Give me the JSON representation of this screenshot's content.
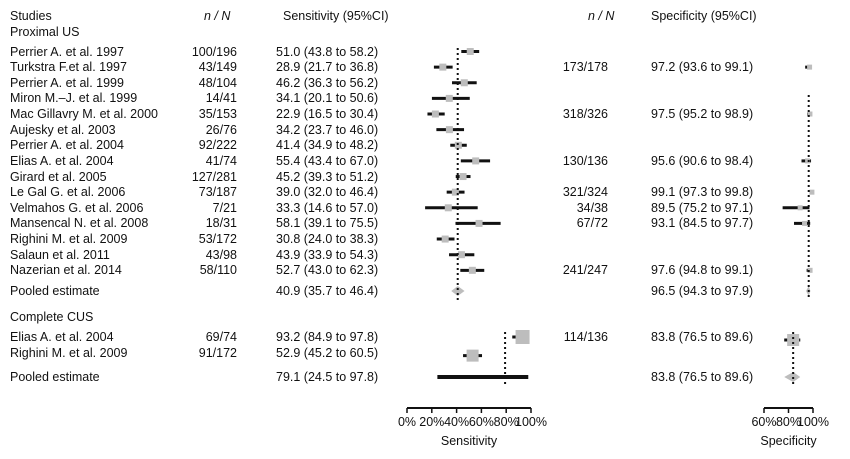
{
  "chart_data": {
    "type": "forest",
    "headers": {
      "studies": "Studies",
      "n_over_n": "n / N",
      "sensitivity_ci": "Sensitivity (95%CI)",
      "specificity_ci": "Specificity (95%CI)"
    },
    "groups": [
      {
        "label": "Proximal US",
        "studies": [
          {
            "study": "Perrier A. et al. 1997",
            "sens_n": "100/196",
            "sens_text": "51.0 (43.8 to 58.2)",
            "sens": 51.0,
            "sens_lo": 43.8,
            "sens_hi": 58.2,
            "spec_n": "",
            "spec_text": "",
            "spec": null,
            "spec_lo": null,
            "spec_hi": null
          },
          {
            "study": "Turkstra F.et al. 1997",
            "sens_n": "43/149",
            "sens_text": "28.9 (21.7 to 36.8)",
            "sens": 28.9,
            "sens_lo": 21.7,
            "sens_hi": 36.8,
            "spec_n": "173/178",
            "spec_text": "97.2 (93.6 to 99.1)",
            "spec": 97.2,
            "spec_lo": 93.6,
            "spec_hi": 99.1
          },
          {
            "study": "Perrier A. et al. 1999",
            "sens_n": "48/104",
            "sens_text": "46.2 (36.3 to 56.2)",
            "sens": 46.2,
            "sens_lo": 36.3,
            "sens_hi": 56.2,
            "spec_n": "",
            "spec_text": "",
            "spec": null,
            "spec_lo": null,
            "spec_hi": null
          },
          {
            "study": "Miron M.–J. et al. 1999",
            "sens_n": "14/41",
            "sens_text": "34.1 (20.1 to 50.6)",
            "sens": 34.1,
            "sens_lo": 20.1,
            "sens_hi": 50.6,
            "spec_n": "",
            "spec_text": "",
            "spec": null,
            "spec_lo": null,
            "spec_hi": null
          },
          {
            "study": "Mac Gillavry M. et al. 2000",
            "sens_n": "35/153",
            "sens_text": "22.9 (16.5 to 30.4)",
            "sens": 22.9,
            "sens_lo": 16.5,
            "sens_hi": 30.4,
            "spec_n": "318/326",
            "spec_text": "97.5 (95.2 to 98.9)",
            "spec": 97.5,
            "spec_lo": 95.2,
            "spec_hi": 98.9
          },
          {
            "study": "Aujesky et al. 2003",
            "sens_n": "26/76",
            "sens_text": "34.2 (23.7 to 46.0)",
            "sens": 34.2,
            "sens_lo": 23.7,
            "sens_hi": 46.0,
            "spec_n": "",
            "spec_text": "",
            "spec": null,
            "spec_lo": null,
            "spec_hi": null
          },
          {
            "study": "Perrier A. et al. 2004",
            "sens_n": "92/222",
            "sens_text": "41.4 (34.9 to 48.2)",
            "sens": 41.4,
            "sens_lo": 34.9,
            "sens_hi": 48.2,
            "spec_n": "",
            "spec_text": "",
            "spec": null,
            "spec_lo": null,
            "spec_hi": null
          },
          {
            "study": "Elias A. et al. 2004",
            "sens_n": "41/74",
            "sens_text": "55.4 (43.4 to 67.0)",
            "sens": 55.4,
            "sens_lo": 43.4,
            "sens_hi": 67.0,
            "spec_n": "130/136",
            "spec_text": "95.6 (90.6 to 98.4)",
            "spec": 95.6,
            "spec_lo": 90.6,
            "spec_hi": 98.4
          },
          {
            "study": "Girard et al. 2005",
            "sens_n": "127/281",
            "sens_text": "45.2 (39.3 to 51.2)",
            "sens": 45.2,
            "sens_lo": 39.3,
            "sens_hi": 51.2,
            "spec_n": "",
            "spec_text": "",
            "spec": null,
            "spec_lo": null,
            "spec_hi": null
          },
          {
            "study": "Le Gal G. et al. 2006",
            "sens_n": "73/187",
            "sens_text": "39.0 (32.0 to 46.4)",
            "sens": 39.0,
            "sens_lo": 32.0,
            "sens_hi": 46.4,
            "spec_n": "321/324",
            "spec_text": "99.1 (97.3 to 99.8)",
            "spec": 99.1,
            "spec_lo": 97.3,
            "spec_hi": 99.8
          },
          {
            "study": "Velmahos G. et al. 2006",
            "sens_n": "7/21",
            "sens_text": "33.3 (14.6 to 57.0)",
            "sens": 33.3,
            "sens_lo": 14.6,
            "sens_hi": 57.0,
            "spec_n": "34/38",
            "spec_text": "89.5 (75.2 to 97.1)",
            "spec": 89.5,
            "spec_lo": 75.2,
            "spec_hi": 97.1
          },
          {
            "study": "Mansencal N. et al. 2008",
            "sens_n": "18/31",
            "sens_text": "58.1 (39.1 to 75.5)",
            "sens": 58.1,
            "sens_lo": 39.1,
            "sens_hi": 75.5,
            "spec_n": "67/72",
            "spec_text": "93.1 (84.5 to 97.7)",
            "spec": 93.1,
            "spec_lo": 84.5,
            "spec_hi": 97.7
          },
          {
            "study": "Righini M. et al. 2009",
            "sens_n": "53/172",
            "sens_text": "30.8 (24.0 to 38.3)",
            "sens": 30.8,
            "sens_lo": 24.0,
            "sens_hi": 38.3,
            "spec_n": "",
            "spec_text": "",
            "spec": null,
            "spec_lo": null,
            "spec_hi": null
          },
          {
            "study": "Salaun et al. 2011",
            "sens_n": "43/98",
            "sens_text": "43.9 (33.9 to 54.3)",
            "sens": 43.9,
            "sens_lo": 33.9,
            "sens_hi": 54.3,
            "spec_n": "",
            "spec_text": "",
            "spec": null,
            "spec_lo": null,
            "spec_hi": null
          },
          {
            "study": "Nazerian et al. 2014",
            "sens_n": "58/110",
            "sens_text": "52.7 (43.0 to 62.3)",
            "sens": 52.7,
            "sens_lo": 43.0,
            "sens_hi": 62.3,
            "spec_n": "241/247",
            "spec_text": "97.6 (94.8 to 99.1)",
            "spec": 97.6,
            "spec_lo": 94.8,
            "spec_hi": 99.1
          }
        ],
        "pooled": {
          "label": "Pooled estimate",
          "sens_text": "40.9 (35.7 to 46.4)",
          "sens": 40.9,
          "sens_lo": 35.7,
          "sens_hi": 46.4,
          "spec_text": "96.5 (94.3 to 97.9)",
          "spec": 96.5,
          "spec_lo": 94.3,
          "spec_hi": 97.9
        }
      },
      {
        "label": "Complete CUS",
        "studies": [
          {
            "study": "Elias A. et al. 2004",
            "sens_n": "69/74",
            "sens_text": "93.2 (84.9 to 97.8)",
            "sens": 93.2,
            "sens_lo": 84.9,
            "sens_hi": 97.8,
            "spec_n": "114/136",
            "spec_text": "83.8 (76.5 to 89.6)",
            "spec": 83.8,
            "spec_lo": 76.5,
            "spec_hi": 89.6
          },
          {
            "study": "Righini M. et al. 2009",
            "sens_n": "91/172",
            "sens_text": "52.9 (45.2 to 60.5)",
            "sens": 52.9,
            "sens_lo": 45.2,
            "sens_hi": 60.5,
            "spec_n": "",
            "spec_text": "",
            "spec": null,
            "spec_lo": null,
            "spec_hi": null
          }
        ],
        "pooled": {
          "label": "Pooled estimate",
          "sens_text": "79.1 (24.5 to 97.8)",
          "sens": 79.1,
          "sens_lo": 24.5,
          "sens_hi": 97.8,
          "spec_text": "83.8 (76.5 to 89.6)",
          "spec": 83.8,
          "spec_lo": 76.5,
          "spec_hi": 89.6
        }
      }
    ],
    "sensitivity_axis": {
      "label": "Sensitivity",
      "range": [
        0,
        100
      ],
      "ticks": [
        0,
        20,
        40,
        60,
        80,
        100
      ],
      "tick_labels": [
        "0%",
        "20%",
        "40%",
        "60%",
        "80%",
        "100%"
      ]
    },
    "specificity_axis": {
      "label": "Specificity",
      "range": [
        60,
        100
      ],
      "ticks": [
        60,
        80,
        100
      ],
      "tick_labels": [
        "60%",
        "80%",
        "100%"
      ]
    },
    "colors": {
      "marker": "#bdbdbd",
      "ci_line": "#111111",
      "text": "#111111"
    }
  }
}
